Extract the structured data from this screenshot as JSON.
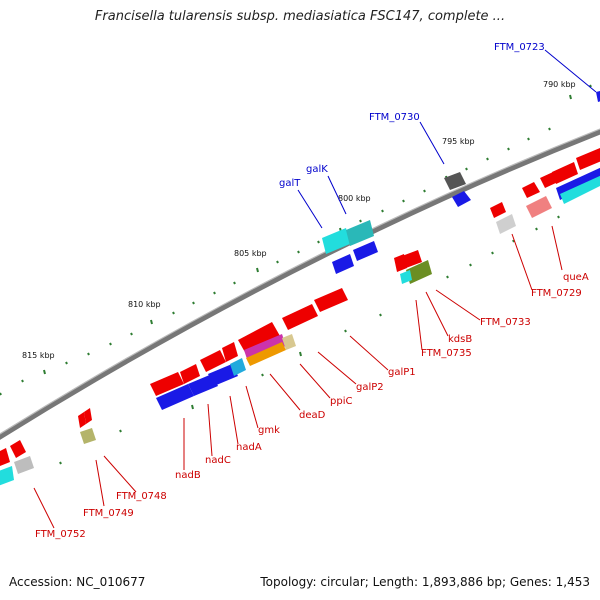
{
  "title": "Francisella tularensis subsp. mediasiatica FSC147, complete ...",
  "footer": {
    "accession": "Accession: NC_010677",
    "summary": "Topology: circular; Length: 1,893,886 bp; Genes: 1,453"
  },
  "colors": {
    "backbone": "#777777",
    "tick": "#2e7d32",
    "label_blue": "#0000cc",
    "label_red": "#cc0000",
    "red": "#ee0000",
    "blue": "#1a1ae6",
    "cyan": "#22dddd",
    "gray": "#bdbdbd",
    "darkgray": "#555555"
  },
  "scale_labels": [
    "790 kbp",
    "795 kbp",
    "800 kbp",
    "805 kbp",
    "810 kbp",
    "815 kbp"
  ],
  "gene_labels_top": [
    "FTM_0723",
    "FTM_0730",
    "galK",
    "galT"
  ],
  "gene_labels_bottom": [
    "queA",
    "FTM_0729",
    "FTM_0733",
    "kdsB",
    "FTM_0735",
    "galP1",
    "galP2",
    "ppiC",
    "deaD",
    "gmk",
    "nadA",
    "nadC",
    "nadB",
    "FTM_0748",
    "FTM_0749",
    "FTM_0752"
  ]
}
